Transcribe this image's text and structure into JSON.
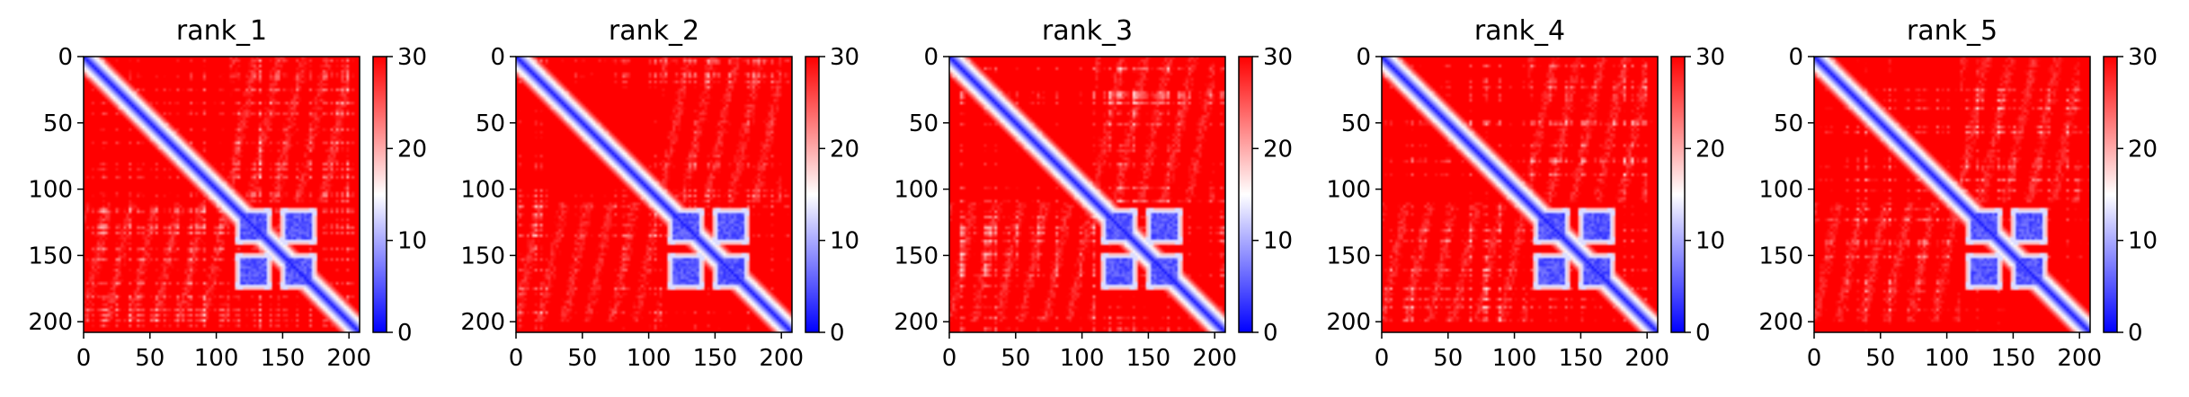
{
  "chart_data": [
    {
      "type": "heatmap",
      "title": "rank_1",
      "xlim": [
        0,
        208
      ],
      "ylim": [
        208,
        0
      ],
      "xticks": [
        0,
        50,
        100,
        150,
        200
      ],
      "yticks": [
        0,
        50,
        100,
        150,
        200
      ],
      "colorbar": {
        "min": 0,
        "max": 30,
        "ticks": [
          0,
          10,
          20,
          30
        ]
      },
      "cmap": [
        "#0000ff",
        "#ffffff",
        "#ff0000"
      ],
      "blue_blocks": [
        [
          118,
          138
        ],
        [
          152,
          172
        ]
      ]
    },
    {
      "type": "heatmap",
      "title": "rank_2",
      "xlim": [
        0,
        208
      ],
      "ylim": [
        208,
        0
      ],
      "xticks": [
        0,
        50,
        100,
        150,
        200
      ],
      "yticks": [
        0,
        50,
        100,
        150,
        200
      ],
      "colorbar": {
        "min": 0,
        "max": 30,
        "ticks": [
          0,
          10,
          20,
          30
        ]
      },
      "cmap": [
        "#0000ff",
        "#ffffff",
        "#ff0000"
      ],
      "blue_blocks": [
        [
          118,
          138
        ],
        [
          152,
          172
        ]
      ]
    },
    {
      "type": "heatmap",
      "title": "rank_3",
      "xlim": [
        0,
        208
      ],
      "ylim": [
        208,
        0
      ],
      "xticks": [
        0,
        50,
        100,
        150,
        200
      ],
      "yticks": [
        0,
        50,
        100,
        150,
        200
      ],
      "colorbar": {
        "min": 0,
        "max": 30,
        "ticks": [
          0,
          10,
          20,
          30
        ]
      },
      "cmap": [
        "#0000ff",
        "#ffffff",
        "#ff0000"
      ],
      "blue_blocks": [
        [
          118,
          138
        ],
        [
          152,
          172
        ]
      ]
    },
    {
      "type": "heatmap",
      "title": "rank_4",
      "xlim": [
        0,
        208
      ],
      "ylim": [
        208,
        0
      ],
      "xticks": [
        0,
        50,
        100,
        150,
        200
      ],
      "yticks": [
        0,
        50,
        100,
        150,
        200
      ],
      "colorbar": {
        "min": 0,
        "max": 30,
        "ticks": [
          0,
          10,
          20,
          30
        ]
      },
      "cmap": [
        "#0000ff",
        "#ffffff",
        "#ff0000"
      ],
      "blue_blocks": [
        [
          118,
          138
        ],
        [
          152,
          172
        ]
      ]
    },
    {
      "type": "heatmap",
      "title": "rank_5",
      "xlim": [
        0,
        208
      ],
      "ylim": [
        208,
        0
      ],
      "xticks": [
        0,
        50,
        100,
        150,
        200
      ],
      "yticks": [
        0,
        50,
        100,
        150,
        200
      ],
      "colorbar": {
        "min": 0,
        "max": 30,
        "ticks": [
          0,
          10,
          20,
          30
        ]
      },
      "cmap": [
        "#0000ff",
        "#ffffff",
        "#ff0000"
      ],
      "blue_blocks": [
        [
          118,
          138
        ],
        [
          152,
          172
        ]
      ]
    }
  ]
}
